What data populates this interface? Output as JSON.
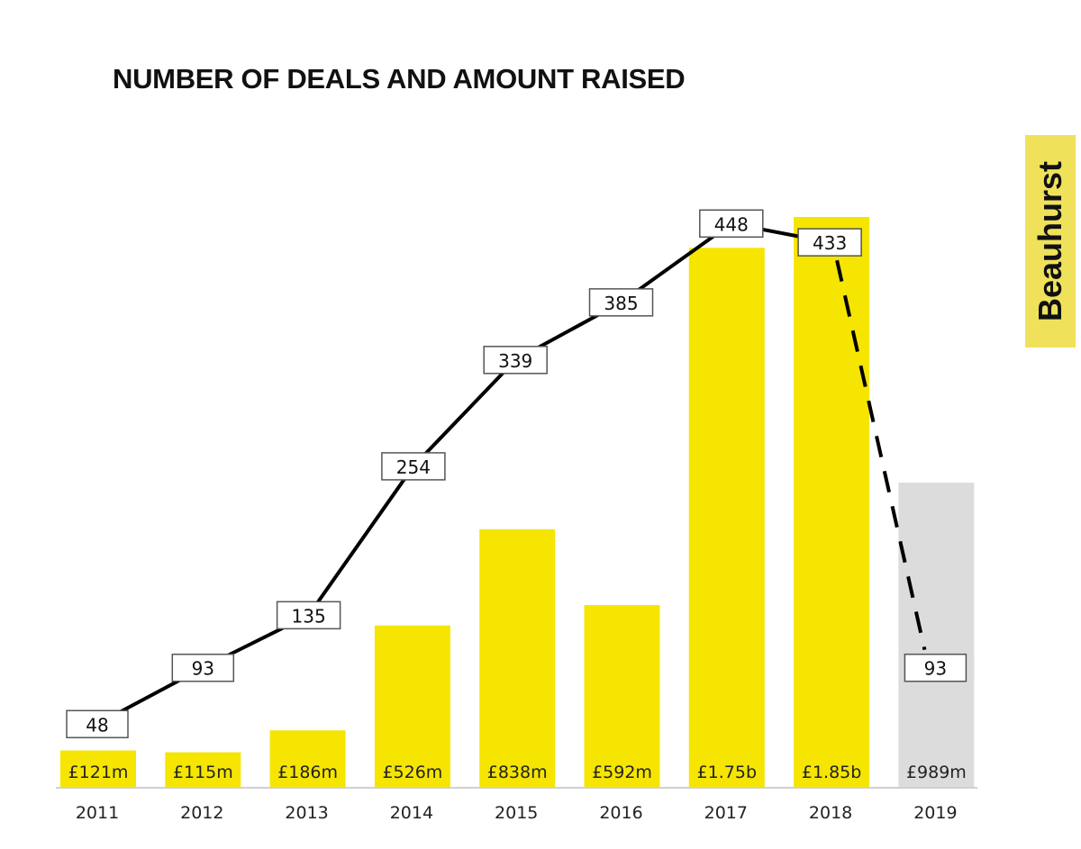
{
  "brand": {
    "name": "Beauhurst"
  },
  "chart_data": {
    "type": "bar",
    "title": "NUMBER OF DEALS AND AMOUNT RAISED",
    "xlabel": "",
    "ylabel": "",
    "categories": [
      "2011",
      "2012",
      "2013",
      "2014",
      "2015",
      "2016",
      "2017",
      "2018",
      "2019"
    ],
    "series": [
      {
        "name": "Amount raised (£m)",
        "type": "bar",
        "values": [
          121,
          115,
          186,
          526,
          838,
          592,
          1750,
          1850,
          989
        ],
        "labels": [
          "£121m",
          "£115m",
          "£186m",
          "£526m",
          "£838m",
          "£592m",
          "£1.75b",
          "£1.85b",
          "£989m"
        ],
        "colors": [
          "#f5e500",
          "#f5e500",
          "#f5e500",
          "#f5e500",
          "#f5e500",
          "#f5e500",
          "#f5e500",
          "#f5e500",
          "#dcdcdc"
        ]
      },
      {
        "name": "Number of deals",
        "type": "line",
        "values": [
          48,
          93,
          135,
          254,
          339,
          385,
          448,
          433,
          93
        ],
        "labels": [
          "48",
          "93",
          "135",
          "254",
          "339",
          "385",
          "448",
          "433",
          "93"
        ],
        "dashed_last_segment": true,
        "color": "#000000"
      }
    ],
    "bar_ylim": [
      0,
      1850
    ],
    "line_ylim": [
      0,
      448
    ],
    "grid": false,
    "legend": "none"
  }
}
